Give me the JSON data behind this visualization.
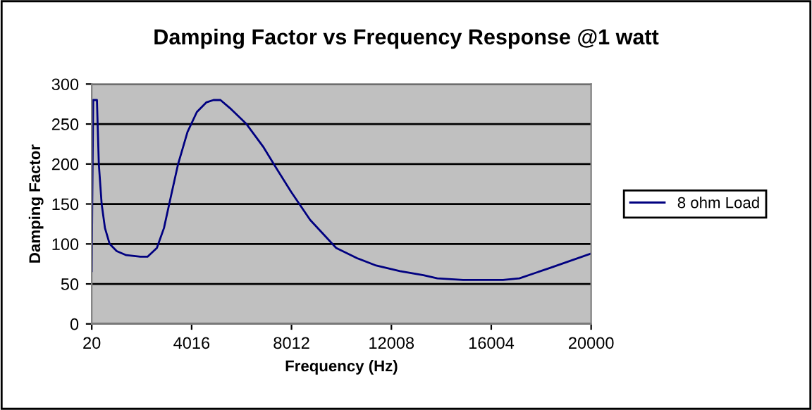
{
  "chart_data": {
    "type": "line",
    "title": "Damping Factor vs Frequency Response @1 watt",
    "xlabel": "Frequency (Hz)",
    "ylabel": "Damping Factor",
    "xlim": [
      20,
      20000
    ],
    "xticks": [
      20,
      4016,
      8012,
      12008,
      16004,
      20000
    ],
    "ylim": [
      0,
      300
    ],
    "yticks": [
      0,
      50,
      100,
      150,
      200,
      250,
      300
    ],
    "grid": "y",
    "legend": "right",
    "line_style": "solid",
    "marker": "none",
    "series": [
      {
        "name": "8 ohm Load",
        "color": "#000080",
        "x": [
          20,
          40,
          77,
          227,
          303,
          416,
          548,
          737,
          1020,
          1400,
          1965,
          2250,
          2625,
          2910,
          3190,
          3475,
          3850,
          4225,
          4600,
          4890,
          5170,
          5545,
          6210,
          6870,
          7440,
          8000,
          8760,
          9800,
          10650,
          11400,
          12350,
          13290,
          13846,
          14878,
          16473,
          17130,
          18350,
          20000
        ],
        "values": [
          66,
          155,
          280,
          280,
          200,
          150,
          120,
          100,
          91,
          86,
          84,
          84,
          95,
          120,
          160,
          200,
          240,
          265,
          277,
          280,
          280,
          270,
          250,
          222,
          193,
          165,
          130,
          95,
          82,
          73,
          66,
          61,
          57,
          55,
          55,
          57,
          70,
          88
        ]
      }
    ]
  }
}
